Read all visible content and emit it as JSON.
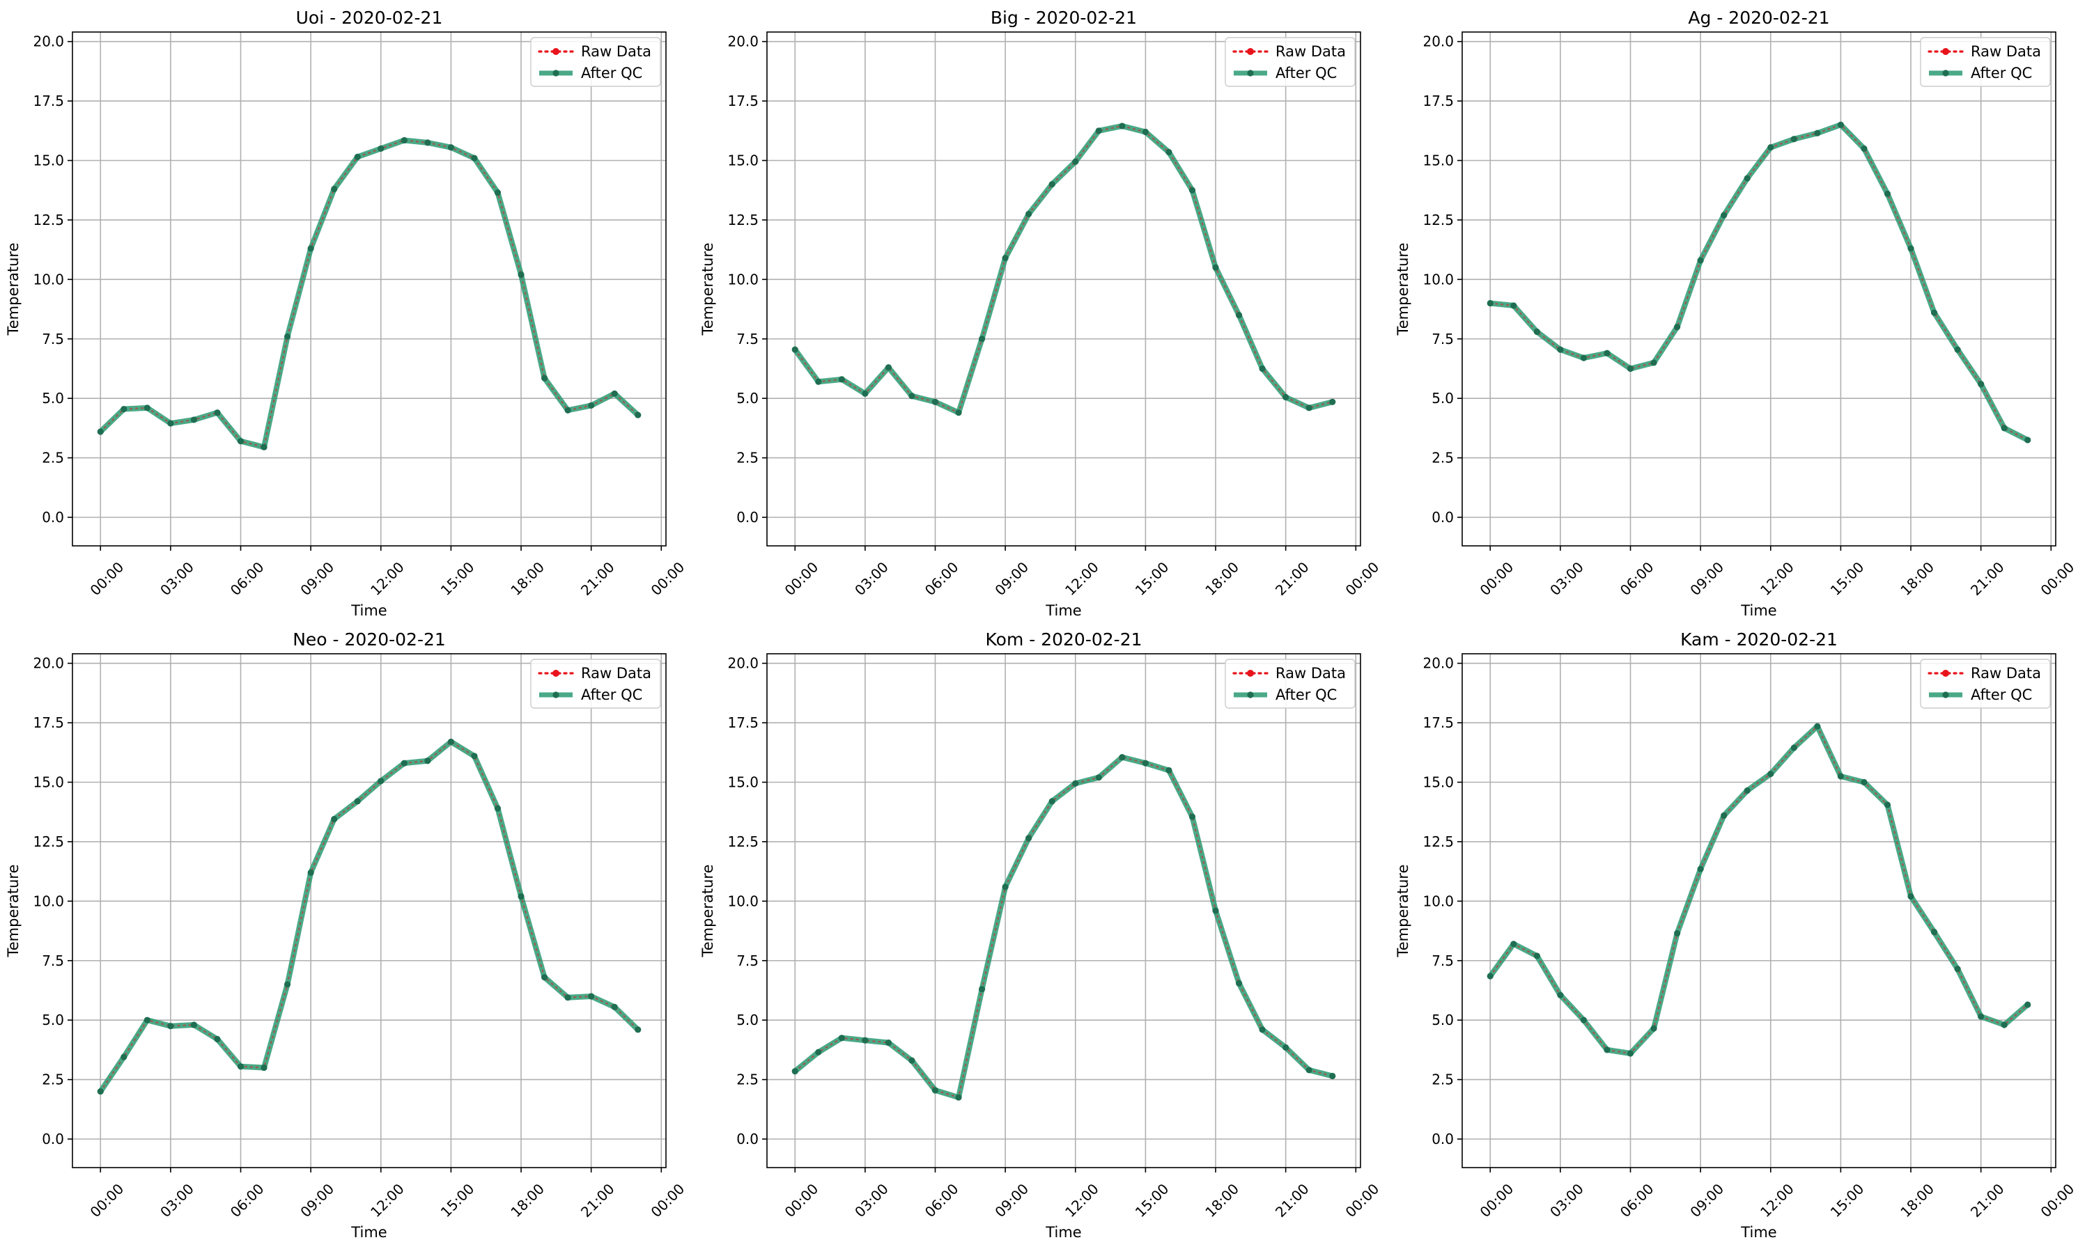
{
  "legend": {
    "raw": "Raw Data",
    "qc": "After QC"
  },
  "colors": {
    "raw": "#e8141c",
    "qc": "#2a9a72",
    "marker": "#1f6e52",
    "grid": "#b0b0b0",
    "axis": "#000000"
  },
  "chart_data": [
    {
      "type": "line",
      "title": "Uoi - 2020-02-21",
      "xlabel": "Time",
      "ylabel": "Temperature",
      "x_ticks": [
        "00:00",
        "03:00",
        "06:00",
        "09:00",
        "12:00",
        "15:00",
        "18:00",
        "21:00",
        "00:00"
      ],
      "y_ticks": [
        "0.0",
        "2.5",
        "5.0",
        "7.5",
        "10.0",
        "12.5",
        "15.0",
        "17.5",
        "20.0"
      ],
      "ylim": [
        -1.2,
        20.4
      ],
      "x_hours_range": [
        -1.2,
        24.2
      ],
      "grid": true,
      "legend_position": "top-right",
      "series": [
        {
          "name": "Raw Data",
          "values": [
            3.6,
            4.55,
            4.6,
            3.95,
            4.1,
            4.4,
            3.2,
            2.95,
            7.6,
            11.3,
            13.8,
            15.15,
            15.5,
            15.85,
            15.75,
            15.55,
            15.1,
            13.65,
            10.2,
            5.85,
            4.5,
            4.7,
            5.2,
            4.3
          ]
        },
        {
          "name": "After QC",
          "values": [
            3.6,
            4.55,
            4.6,
            3.95,
            4.1,
            4.4,
            3.2,
            2.95,
            7.6,
            11.3,
            13.8,
            15.15,
            15.5,
            15.85,
            15.75,
            15.55,
            15.1,
            13.65,
            10.2,
            5.85,
            4.5,
            4.7,
            5.2,
            4.3
          ]
        }
      ]
    },
    {
      "type": "line",
      "title": "Big - 2020-02-21",
      "xlabel": "Time",
      "ylabel": "Temperature",
      "x_ticks": [
        "00:00",
        "03:00",
        "06:00",
        "09:00",
        "12:00",
        "15:00",
        "18:00",
        "21:00",
        "00:00"
      ],
      "y_ticks": [
        "0.0",
        "2.5",
        "5.0",
        "7.5",
        "10.0",
        "12.5",
        "15.0",
        "17.5",
        "20.0"
      ],
      "ylim": [
        -1.2,
        20.4
      ],
      "x_hours_range": [
        -1.2,
        24.2
      ],
      "grid": true,
      "legend_position": "top-right",
      "series": [
        {
          "name": "Raw Data",
          "values": [
            7.05,
            5.7,
            5.8,
            5.2,
            6.3,
            5.1,
            4.85,
            4.4,
            7.5,
            10.9,
            12.75,
            14.0,
            14.95,
            16.25,
            16.45,
            16.2,
            15.35,
            13.75,
            10.5,
            8.5,
            6.25,
            5.05,
            4.6,
            4.85
          ]
        },
        {
          "name": "After QC",
          "values": [
            7.05,
            5.7,
            5.8,
            5.2,
            6.3,
            5.1,
            4.85,
            4.4,
            7.5,
            10.9,
            12.75,
            14.0,
            14.95,
            16.25,
            16.45,
            16.2,
            15.35,
            13.75,
            10.5,
            8.5,
            6.25,
            5.05,
            4.6,
            4.85
          ]
        }
      ]
    },
    {
      "type": "line",
      "title": "Ag - 2020-02-21",
      "xlabel": "Time",
      "ylabel": "Temperature",
      "x_ticks": [
        "00:00",
        "03:00",
        "06:00",
        "09:00",
        "12:00",
        "15:00",
        "18:00",
        "21:00",
        "00:00"
      ],
      "y_ticks": [
        "0.0",
        "2.5",
        "5.0",
        "7.5",
        "10.0",
        "12.5",
        "15.0",
        "17.5",
        "20.0"
      ],
      "ylim": [
        -1.2,
        20.4
      ],
      "x_hours_range": [
        -1.2,
        24.2
      ],
      "grid": true,
      "legend_position": "top-right",
      "series": [
        {
          "name": "Raw Data",
          "values": [
            9.0,
            8.9,
            7.8,
            7.05,
            6.7,
            6.9,
            6.25,
            6.5,
            8.0,
            10.8,
            12.7,
            14.25,
            15.55,
            15.9,
            16.15,
            16.5,
            15.5,
            13.6,
            11.3,
            8.6,
            7.05,
            5.6,
            3.75,
            3.25
          ]
        },
        {
          "name": "After QC",
          "values": [
            9.0,
            8.9,
            7.8,
            7.05,
            6.7,
            6.9,
            6.25,
            6.5,
            8.0,
            10.8,
            12.7,
            14.25,
            15.55,
            15.9,
            16.15,
            16.5,
            15.5,
            13.6,
            11.3,
            8.6,
            7.05,
            5.6,
            3.75,
            3.25
          ]
        }
      ]
    },
    {
      "type": "line",
      "title": "Neo - 2020-02-21",
      "xlabel": "Time",
      "ylabel": "Temperature",
      "x_ticks": [
        "00:00",
        "03:00",
        "06:00",
        "09:00",
        "12:00",
        "15:00",
        "18:00",
        "21:00",
        "00:00"
      ],
      "y_ticks": [
        "0.0",
        "2.5",
        "5.0",
        "7.5",
        "10.0",
        "12.5",
        "15.0",
        "17.5",
        "20.0"
      ],
      "ylim": [
        -1.2,
        20.4
      ],
      "x_hours_range": [
        -1.2,
        24.2
      ],
      "grid": true,
      "legend_position": "top-right",
      "series": [
        {
          "name": "Raw Data",
          "values": [
            2.0,
            3.45,
            5.0,
            4.75,
            4.8,
            4.2,
            3.05,
            3.0,
            6.5,
            11.2,
            13.45,
            14.2,
            15.05,
            15.8,
            15.9,
            16.7,
            16.1,
            13.9,
            10.2,
            6.8,
            5.95,
            6.0,
            5.55,
            4.6
          ]
        },
        {
          "name": "After QC",
          "values": [
            2.0,
            3.45,
            5.0,
            4.75,
            4.8,
            4.2,
            3.05,
            3.0,
            6.5,
            11.2,
            13.45,
            14.2,
            15.05,
            15.8,
            15.9,
            16.7,
            16.1,
            13.9,
            10.2,
            6.8,
            5.95,
            6.0,
            5.55,
            4.6
          ]
        }
      ]
    },
    {
      "type": "line",
      "title": "Kom - 2020-02-21",
      "xlabel": "Time",
      "ylabel": "Temperature",
      "x_ticks": [
        "00:00",
        "03:00",
        "06:00",
        "09:00",
        "12:00",
        "15:00",
        "18:00",
        "21:00",
        "00:00"
      ],
      "y_ticks": [
        "0.0",
        "2.5",
        "5.0",
        "7.5",
        "10.0",
        "12.5",
        "15.0",
        "17.5",
        "20.0"
      ],
      "ylim": [
        -1.2,
        20.4
      ],
      "x_hours_range": [
        -1.2,
        24.2
      ],
      "grid": true,
      "legend_position": "top-right",
      "series": [
        {
          "name": "Raw Data",
          "values": [
            2.85,
            3.65,
            4.25,
            4.15,
            4.05,
            3.3,
            2.05,
            1.75,
            6.3,
            10.6,
            12.65,
            14.2,
            14.95,
            15.2,
            16.05,
            15.8,
            15.5,
            13.55,
            9.6,
            6.55,
            4.6,
            3.85,
            2.9,
            2.65
          ]
        },
        {
          "name": "After QC",
          "values": [
            2.85,
            3.65,
            4.25,
            4.15,
            4.05,
            3.3,
            2.05,
            1.75,
            6.3,
            10.6,
            12.65,
            14.2,
            14.95,
            15.2,
            16.05,
            15.8,
            15.5,
            13.55,
            9.6,
            6.55,
            4.6,
            3.85,
            2.9,
            2.65
          ]
        }
      ]
    },
    {
      "type": "line",
      "title": "Kam - 2020-02-21",
      "xlabel": "Time",
      "ylabel": "Temperature",
      "x_ticks": [
        "00:00",
        "03:00",
        "06:00",
        "09:00",
        "12:00",
        "15:00",
        "18:00",
        "21:00",
        "00:00"
      ],
      "y_ticks": [
        "0.0",
        "2.5",
        "5.0",
        "7.5",
        "10.0",
        "12.5",
        "15.0",
        "17.5",
        "20.0"
      ],
      "ylim": [
        -1.2,
        20.4
      ],
      "x_hours_range": [
        -1.2,
        24.2
      ],
      "grid": true,
      "legend_position": "top-right",
      "series": [
        {
          "name": "Raw Data",
          "values": [
            6.85,
            8.2,
            7.7,
            6.05,
            5.0,
            3.75,
            3.6,
            4.65,
            8.65,
            11.35,
            13.6,
            14.65,
            15.35,
            16.45,
            17.35,
            15.25,
            15.0,
            14.05,
            10.2,
            8.7,
            7.15,
            5.15,
            4.8,
            5.65
          ]
        },
        {
          "name": "After QC",
          "values": [
            6.85,
            8.2,
            7.7,
            6.05,
            5.0,
            3.75,
            3.6,
            4.65,
            8.65,
            11.35,
            13.6,
            14.65,
            15.35,
            16.45,
            17.35,
            15.25,
            15.0,
            14.05,
            10.2,
            8.7,
            7.15,
            5.15,
            4.8,
            5.65
          ]
        }
      ]
    }
  ]
}
